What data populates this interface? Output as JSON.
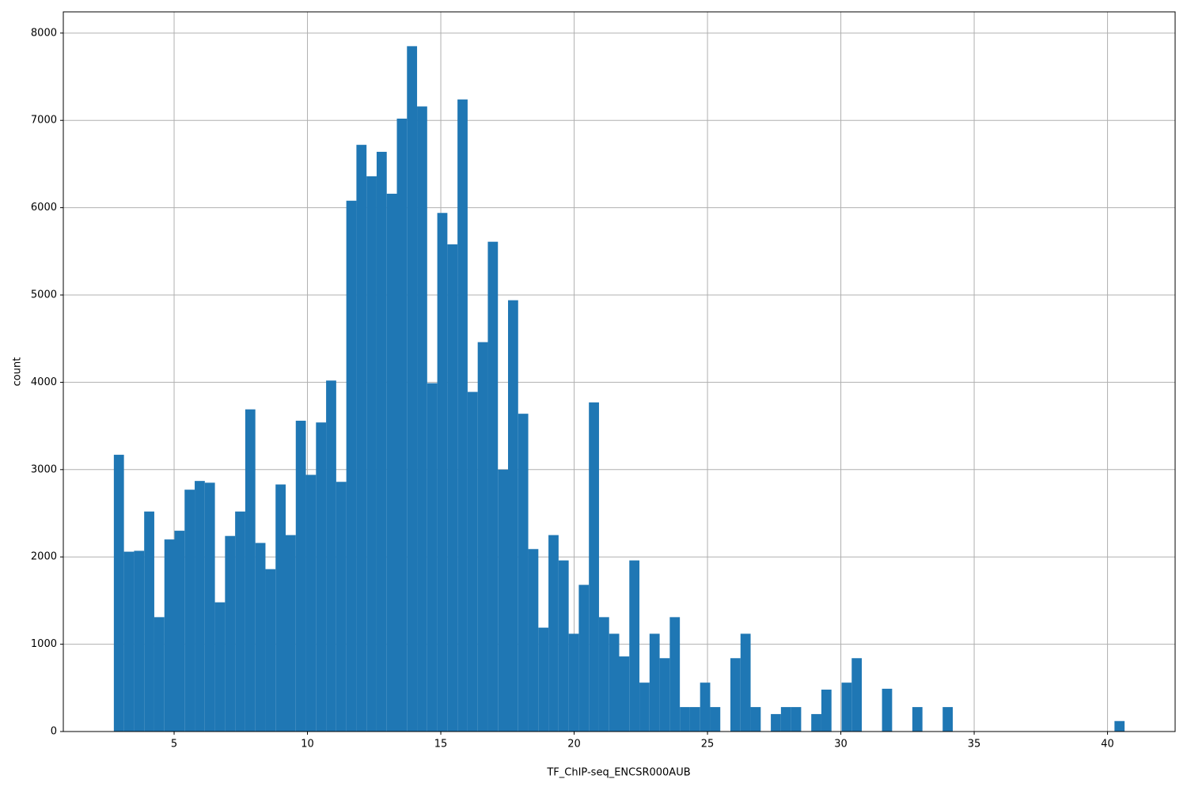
{
  "chart_data": {
    "type": "histogram",
    "x_label": "TF_ChIP-seq_ENCSR000AUB",
    "y_label": "count",
    "color": "#1f77b4",
    "grid": true,
    "bins": [
      2.74,
      3.119,
      3.498,
      3.877,
      4.256,
      4.635,
      5.014,
      5.393,
      5.772,
      6.151,
      6.53,
      6.909,
      7.288,
      7.667,
      8.046,
      8.425,
      8.804,
      9.183,
      9.562,
      9.941,
      10.32,
      10.699,
      11.078,
      11.457,
      11.836,
      12.215,
      12.594,
      12.973,
      13.352,
      13.731,
      14.11,
      14.489,
      14.868,
      15.247,
      15.626,
      16.005,
      16.384,
      16.763,
      17.142,
      17.521,
      17.9,
      18.279,
      18.658,
      19.037,
      19.416,
      19.795,
      20.174,
      20.553,
      20.932,
      21.311,
      21.69,
      22.069,
      22.448,
      22.827,
      23.206,
      23.585,
      23.964,
      24.343,
      24.722,
      25.101,
      25.48,
      25.859,
      26.238,
      26.617,
      26.996,
      27.375,
      27.754,
      28.133,
      28.512,
      28.891,
      29.27,
      29.649,
      30.028,
      30.407,
      30.786,
      31.165,
      31.544,
      31.923,
      32.302,
      32.681,
      33.06,
      33.439,
      33.818,
      34.197,
      34.576,
      34.955,
      35.334,
      35.713,
      36.092,
      36.471,
      36.85,
      37.229,
      37.608,
      37.987,
      38.366,
      38.745,
      39.124,
      39.503,
      39.882,
      40.261,
      40.64
    ],
    "counts": [
      3170,
      2060,
      2070,
      2520,
      1310,
      2200,
      2300,
      2770,
      2870,
      2850,
      1480,
      2240,
      2520,
      3690,
      2160,
      1860,
      2830,
      2250,
      3560,
      2940,
      3540,
      4020,
      2860,
      6080,
      6720,
      6360,
      6640,
      6160,
      7020,
      7850,
      7160,
      3990,
      5940,
      5580,
      7240,
      3890,
      4460,
      5610,
      3000,
      4940,
      3640,
      2090,
      1190,
      2250,
      1960,
      1120,
      1680,
      3770,
      1310,
      1120,
      860,
      1960,
      560,
      1120,
      840,
      1310,
      280,
      280,
      560,
      280,
      0,
      840,
      1120,
      280,
      0,
      200,
      280,
      280,
      0,
      200,
      480,
      0,
      560,
      840,
      0,
      0,
      490,
      0,
      0,
      280,
      0,
      0,
      280,
      0,
      0,
      0,
      0,
      0,
      0,
      0,
      0,
      0,
      0,
      0,
      0,
      0,
      0,
      0,
      0,
      120
    ],
    "xlim": [
      0.845,
      42.535
    ],
    "xticks": [
      5,
      10,
      15,
      20,
      25,
      30,
      35,
      40
    ],
    "ylim": [
      0,
      8243
    ],
    "yticks": [
      0,
      1000,
      2000,
      3000,
      4000,
      5000,
      6000,
      7000,
      8000
    ]
  }
}
